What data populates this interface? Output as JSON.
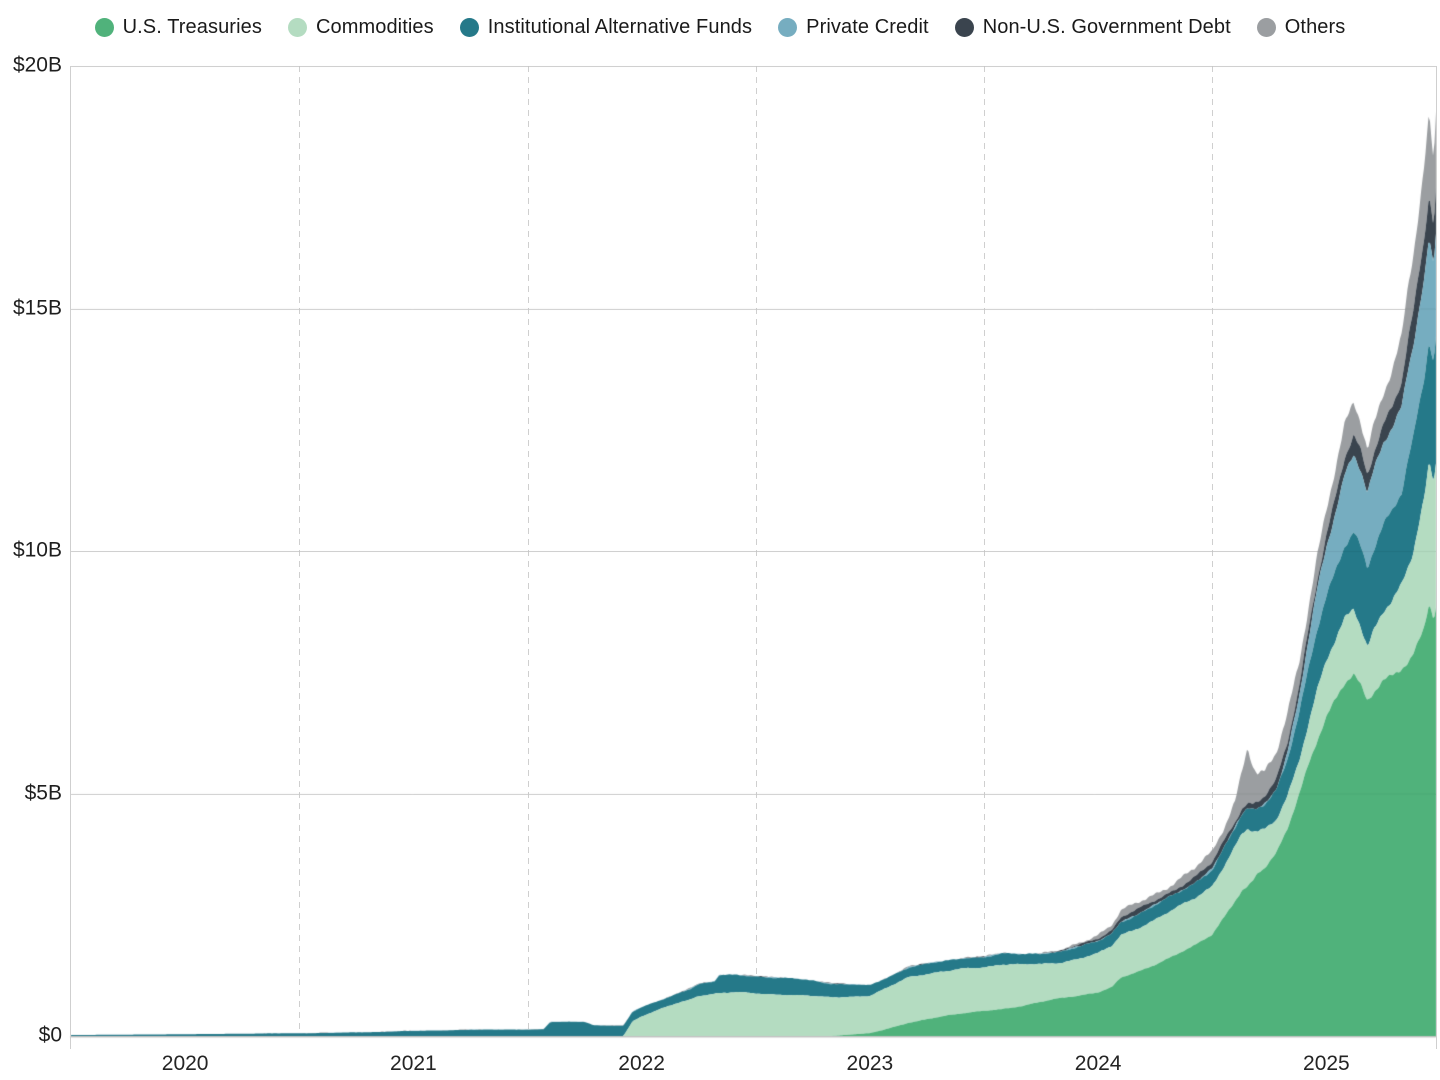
{
  "chart_data": {
    "type": "area",
    "stacked": true,
    "title": "",
    "xlabel": "",
    "ylabel": "",
    "legend_position": "top-center",
    "grid": {
      "horizontal": "solid",
      "vertical": "dashed-at-mid-year"
    },
    "x_unit": "decimal_year",
    "xlim": [
      2019.5,
      2025.48
    ],
    "ylim": [
      0,
      20
    ],
    "yticks": [
      {
        "value": 0,
        "label": "$0"
      },
      {
        "value": 5,
        "label": "$5B"
      },
      {
        "value": 10,
        "label": "$10B"
      },
      {
        "value": 15,
        "label": "$15B"
      },
      {
        "value": 20,
        "label": "$20B"
      }
    ],
    "xticks": [
      {
        "value": 2020,
        "label": "2020"
      },
      {
        "value": 2021,
        "label": "2021"
      },
      {
        "value": 2022,
        "label": "2022"
      },
      {
        "value": 2023,
        "label": "2023"
      },
      {
        "value": 2024,
        "label": "2024"
      },
      {
        "value": 2025,
        "label": "2025"
      }
    ],
    "vgrid_years": [
      2020.5,
      2021.5,
      2022.5,
      2023.5,
      2024.5
    ],
    "x": [
      2019.5,
      2019.83,
      2020.08,
      2020.33,
      2020.58,
      2020.83,
      2020.94,
      2021.08,
      2021.25,
      2021.45,
      2021.57,
      2021.6,
      2021.75,
      2021.79,
      2021.92,
      2021.96,
      2022.0,
      2022.08,
      2022.17,
      2022.21,
      2022.25,
      2022.32,
      2022.34,
      2022.42,
      2022.5,
      2022.58,
      2022.67,
      2022.75,
      2022.83,
      2022.92,
      2023.0,
      2023.08,
      2023.17,
      2023.25,
      2023.33,
      2023.42,
      2023.5,
      2023.58,
      2023.67,
      2023.75,
      2023.83,
      2023.92,
      2024.0,
      2024.06,
      2024.1,
      2024.17,
      2024.25,
      2024.33,
      2024.42,
      2024.5,
      2024.55,
      2024.6,
      2024.63,
      2024.655,
      2024.68,
      2024.7,
      2024.73,
      2024.78,
      2024.83,
      2024.88,
      2024.92,
      2024.96,
      2025.0,
      2025.04,
      2025.08,
      2025.12,
      2025.15,
      2025.18,
      2025.21,
      2025.25,
      2025.29,
      2025.33,
      2025.36,
      2025.38,
      2025.4,
      2025.43,
      2025.45,
      2025.47,
      2025.48
    ],
    "series": [
      {
        "name": "U.S. Treasuries",
        "color": "#50b27b",
        "values": [
          0,
          0,
          0,
          0,
          0,
          0,
          0,
          0,
          0,
          0,
          0,
          0,
          0,
          0,
          0,
          0,
          0,
          0,
          0,
          0,
          0,
          0,
          0,
          0,
          0,
          0,
          0,
          0,
          0,
          0.03,
          0.06,
          0.15,
          0.27,
          0.35,
          0.42,
          0.47,
          0.52,
          0.56,
          0.62,
          0.7,
          0.78,
          0.84,
          0.9,
          1.0,
          1.2,
          1.32,
          1.48,
          1.65,
          1.85,
          2.1,
          2.45,
          2.8,
          3.0,
          3.07,
          3.2,
          3.35,
          3.45,
          3.75,
          4.3,
          5.0,
          5.6,
          6.1,
          6.55,
          6.9,
          7.25,
          7.45,
          7.25,
          6.95,
          7.15,
          7.35,
          7.45,
          7.55,
          7.65,
          7.8,
          8.05,
          8.45,
          8.95,
          8.6,
          8.85
        ]
      },
      {
        "name": "Commodities",
        "color": "#b4dcc1",
        "values": [
          0,
          0,
          0,
          0,
          0,
          0,
          0,
          0,
          0,
          0,
          0,
          0,
          0,
          0,
          0,
          0.3,
          0.4,
          0.55,
          0.7,
          0.75,
          0.83,
          0.87,
          0.88,
          0.9,
          0.88,
          0.86,
          0.84,
          0.82,
          0.8,
          0.78,
          0.76,
          0.85,
          0.95,
          0.93,
          0.91,
          0.92,
          0.9,
          0.92,
          0.85,
          0.78,
          0.73,
          0.76,
          0.8,
          0.85,
          0.88,
          0.9,
          0.92,
          0.95,
          0.98,
          1.0,
          1.05,
          1.1,
          1.15,
          1.18,
          1.0,
          0.85,
          0.8,
          0.72,
          0.68,
          0.68,
          0.8,
          1.0,
          1.15,
          1.25,
          1.35,
          1.4,
          1.25,
          1.1,
          1.25,
          1.4,
          1.5,
          1.7,
          2.0,
          2.15,
          2.4,
          2.7,
          2.9,
          2.85,
          3.0
        ]
      },
      {
        "name": "Institutional Alternative Funds",
        "color": "#257989",
        "values": [
          0.02,
          0.03,
          0.04,
          0.05,
          0.06,
          0.08,
          0.1,
          0.11,
          0.13,
          0.13,
          0.14,
          0.29,
          0.29,
          0.22,
          0.21,
          0.2,
          0.19,
          0.18,
          0.2,
          0.22,
          0.24,
          0.25,
          0.37,
          0.36,
          0.35,
          0.34,
          0.34,
          0.32,
          0.28,
          0.25,
          0.22,
          0.21,
          0.2,
          0.21,
          0.21,
          0.22,
          0.21,
          0.22,
          0.21,
          0.22,
          0.23,
          0.24,
          0.25,
          0.26,
          0.28,
          0.28,
          0.29,
          0.3,
          0.32,
          0.34,
          0.36,
          0.38,
          0.4,
          0.41,
          0.45,
          0.5,
          0.55,
          0.62,
          0.75,
          0.95,
          1.1,
          1.25,
          1.35,
          1.45,
          1.55,
          1.6,
          1.62,
          1.6,
          1.65,
          1.75,
          1.85,
          1.95,
          2.3,
          2.4,
          2.45,
          2.5,
          2.55,
          2.45,
          2.6
        ]
      },
      {
        "name": "Private Credit",
        "color": "#76adc0",
        "values": [
          0,
          0,
          0,
          0,
          0,
          0,
          0,
          0,
          0,
          0,
          0,
          0,
          0,
          0,
          0,
          0,
          0,
          0,
          0,
          0,
          0,
          0,
          0,
          0,
          0,
          0,
          0,
          0,
          0,
          0,
          0,
          0,
          0,
          0,
          0,
          0,
          0,
          0,
          0,
          0,
          0,
          0,
          0,
          0,
          0,
          0,
          0,
          0,
          0,
          0,
          0,
          0,
          0,
          0,
          0,
          0,
          0,
          0,
          0.1,
          0.3,
          0.6,
          0.85,
          1.05,
          1.25,
          1.45,
          1.55,
          1.55,
          1.5,
          1.6,
          1.7,
          1.75,
          1.8,
          1.9,
          1.92,
          1.95,
          2.0,
          2.05,
          1.95,
          2.1
        ]
      },
      {
        "name": "Non-U.S. Government Debt",
        "color": "#3a444e",
        "values": [
          0,
          0,
          0,
          0,
          0,
          0,
          0,
          0,
          0,
          0,
          0,
          0,
          0,
          0,
          0,
          0,
          0,
          0,
          0,
          0,
          0,
          0,
          0,
          0,
          0,
          0,
          0,
          0,
          0,
          0,
          0,
          0,
          0,
          0,
          0,
          0,
          0,
          0,
          0,
          0,
          0,
          0.05,
          0.07,
          0.08,
          0.09,
          0.1,
          0.1,
          0.11,
          0.12,
          0.13,
          0.14,
          0.14,
          0.15,
          0.15,
          0.16,
          0.16,
          0.17,
          0.18,
          0.2,
          0.22,
          0.24,
          0.25,
          0.27,
          0.3,
          0.33,
          0.35,
          0.36,
          0.36,
          0.38,
          0.42,
          0.48,
          0.55,
          0.62,
          0.66,
          0.7,
          0.8,
          0.88,
          0.8,
          0.9
        ]
      },
      {
        "name": "Others",
        "color": "#9b9ea1",
        "values": [
          0,
          0,
          0,
          0,
          0,
          0,
          0,
          0,
          0,
          0,
          0,
          0,
          0,
          0,
          0,
          0,
          0,
          0,
          0,
          0,
          0,
          0,
          0,
          0,
          0,
          0,
          0,
          0,
          0,
          0,
          0,
          0,
          0,
          0,
          0,
          0,
          0,
          0,
          0,
          0,
          0,
          0.04,
          0.08,
          0.1,
          0.12,
          0.13,
          0.14,
          0.15,
          0.17,
          0.2,
          0.28,
          0.45,
          0.8,
          1.2,
          0.75,
          0.55,
          0.45,
          0.52,
          0.58,
          0.55,
          0.52,
          0.5,
          0.52,
          0.55,
          0.6,
          0.65,
          0.6,
          0.55,
          0.62,
          0.7,
          0.8,
          0.9,
          1.05,
          1.12,
          1.2,
          1.45,
          1.6,
          1.3,
          1.55
        ]
      }
    ]
  },
  "colors": {
    "background": "#ffffff",
    "grid_solid": "#dadada",
    "grid_dashed": "#cfcfcf",
    "baseline": "#c6c6c6",
    "axis_text": "#1f1f1f"
  }
}
